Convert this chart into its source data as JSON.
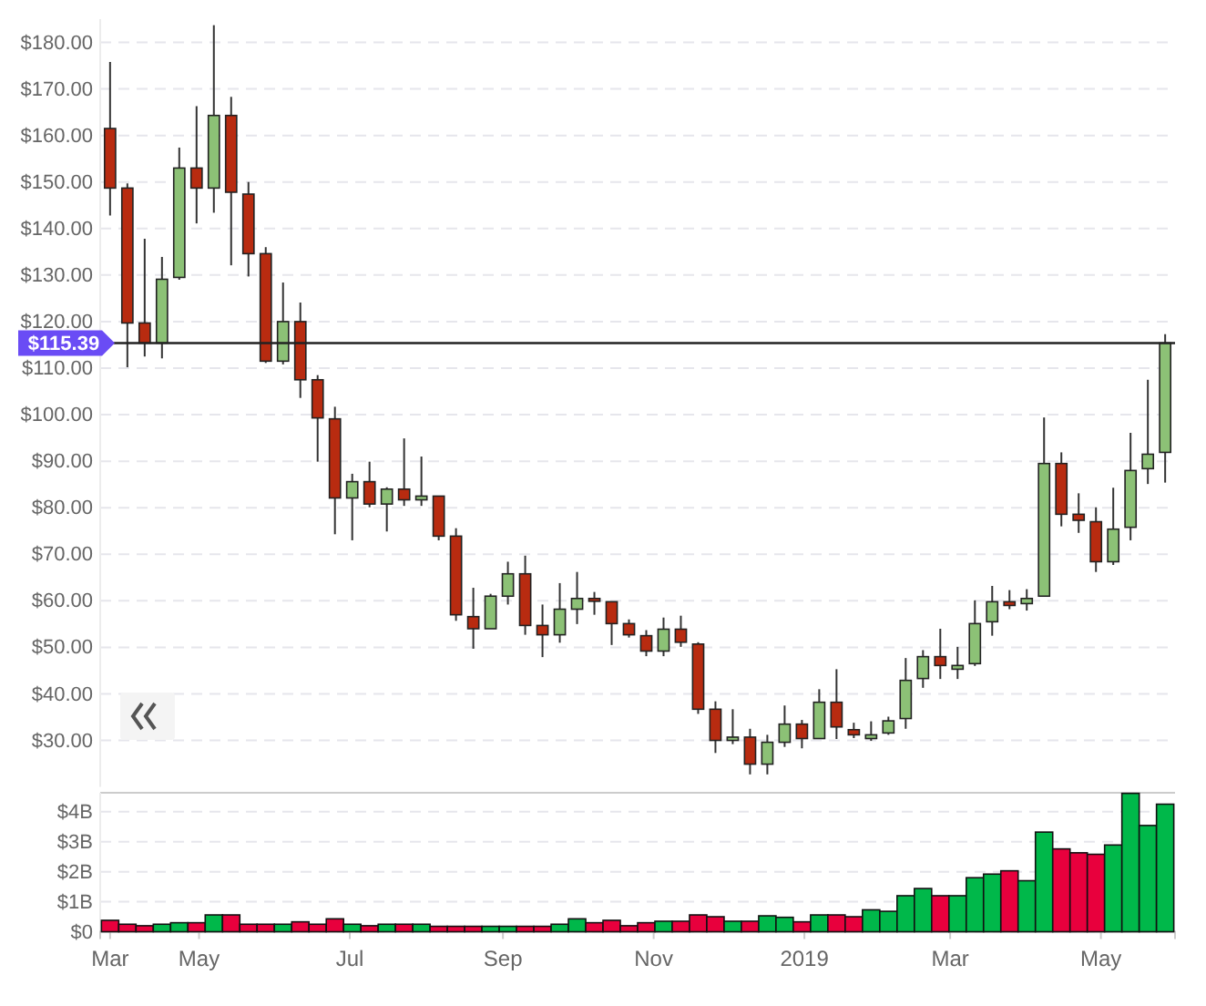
{
  "chart_data": [
    {
      "type": "candlestick",
      "x": [
        "2018-03-26",
        "2018-04-02",
        "2018-04-09",
        "2018-04-16",
        "2018-04-23",
        "2018-04-30",
        "2018-05-07",
        "2018-05-14",
        "2018-05-21",
        "2018-05-28",
        "2018-06-04",
        "2018-06-11",
        "2018-06-18",
        "2018-06-25",
        "2018-07-02",
        "2018-07-09",
        "2018-07-16",
        "2018-07-23",
        "2018-07-30",
        "2018-08-06",
        "2018-08-13",
        "2018-08-20",
        "2018-08-27",
        "2018-09-03",
        "2018-09-10",
        "2018-09-17",
        "2018-09-24",
        "2018-10-01",
        "2018-10-08",
        "2018-10-15",
        "2018-10-22",
        "2018-10-29",
        "2018-11-05",
        "2018-11-12",
        "2018-11-19",
        "2018-11-26",
        "2018-12-03",
        "2018-12-10",
        "2018-12-17",
        "2018-12-24",
        "2018-12-31",
        "2019-01-07",
        "2019-01-14",
        "2019-01-21",
        "2019-01-28",
        "2019-02-04",
        "2019-02-11",
        "2019-02-18",
        "2019-02-25",
        "2019-03-04",
        "2019-03-11",
        "2019-03-18",
        "2019-03-25",
        "2019-04-01",
        "2019-04-08",
        "2019-04-15",
        "2019-04-22",
        "2019-04-29",
        "2019-05-06",
        "2019-05-13",
        "2019-05-20",
        "2019-05-27"
      ],
      "ohlc": [
        [
          161.5,
          175.8,
          142.8,
          148.7
        ],
        [
          148.7,
          149.7,
          110.2,
          119.7
        ],
        [
          119.7,
          137.8,
          112.5,
          115.4
        ],
        [
          115.4,
          133.9,
          112.1,
          129.1
        ],
        [
          129.5,
          157.4,
          129.0,
          153.0
        ],
        [
          153.0,
          166.3,
          141.1,
          148.7
        ],
        [
          148.7,
          183.7,
          143.4,
          164.3
        ],
        [
          164.3,
          168.3,
          132.1,
          147.8
        ],
        [
          147.4,
          150.0,
          129.7,
          134.6
        ],
        [
          134.6,
          136.0,
          111.1,
          111.5
        ],
        [
          111.5,
          128.4,
          110.8,
          120.0
        ],
        [
          120.0,
          124.1,
          103.6,
          107.5
        ],
        [
          107.5,
          108.5,
          89.9,
          99.3
        ],
        [
          99.1,
          101.7,
          74.3,
          82.1
        ],
        [
          82.1,
          87.3,
          73.0,
          85.6
        ],
        [
          85.6,
          89.9,
          80.1,
          80.8
        ],
        [
          80.8,
          84.4,
          74.9,
          84.0
        ],
        [
          84.0,
          94.9,
          80.4,
          81.7
        ],
        [
          81.7,
          91.0,
          80.4,
          82.5
        ],
        [
          82.5,
          82.5,
          73.0,
          73.9
        ],
        [
          73.9,
          75.6,
          55.7,
          57.0
        ],
        [
          56.6,
          62.8,
          49.7,
          54.0
        ],
        [
          54.0,
          61.5,
          54.0,
          61.0
        ],
        [
          61.0,
          68.4,
          59.2,
          65.8
        ],
        [
          65.8,
          69.7,
          52.7,
          54.7
        ],
        [
          54.7,
          59.2,
          47.9,
          52.7
        ],
        [
          52.7,
          63.8,
          51.0,
          58.2
        ],
        [
          58.2,
          66.2,
          55.0,
          60.5
        ],
        [
          60.5,
          61.9,
          57.0,
          59.9
        ],
        [
          59.8,
          59.8,
          50.5,
          55.1
        ],
        [
          55.1,
          56.0,
          52.1,
          52.7
        ],
        [
          52.5,
          53.7,
          48.1,
          49.2
        ],
        [
          49.2,
          56.4,
          48.1,
          53.9
        ],
        [
          53.9,
          56.8,
          50.1,
          51.1
        ],
        [
          50.7,
          51.1,
          35.7,
          36.7
        ],
        [
          36.7,
          38.4,
          27.3,
          30.0
        ],
        [
          30.0,
          36.7,
          29.2,
          30.7
        ],
        [
          30.7,
          32.5,
          22.7,
          24.9
        ],
        [
          24.9,
          31.2,
          22.7,
          29.6
        ],
        [
          29.6,
          37.5,
          28.6,
          33.5
        ],
        [
          33.5,
          34.4,
          28.3,
          30.4
        ],
        [
          30.4,
          41.0,
          30.4,
          38.2
        ],
        [
          38.2,
          45.3,
          30.3,
          32.9
        ],
        [
          32.3,
          33.8,
          30.5,
          31.2
        ],
        [
          30.4,
          34.1,
          29.9,
          31.2
        ],
        [
          31.6,
          35.1,
          31.2,
          34.2
        ],
        [
          34.7,
          47.7,
          32.5,
          42.9
        ],
        [
          43.3,
          49.4,
          41.3,
          48.0
        ],
        [
          48.0,
          54.0,
          43.2,
          46.1
        ],
        [
          45.3,
          50.1,
          43.2,
          46.1
        ],
        [
          46.5,
          60.1,
          46.0,
          55.1
        ],
        [
          55.5,
          63.2,
          52.5,
          59.8
        ],
        [
          59.8,
          62.3,
          58.2,
          59.0
        ],
        [
          59.4,
          62.5,
          57.9,
          60.5
        ],
        [
          61.0,
          99.4,
          61.0,
          89.5
        ],
        [
          89.5,
          91.9,
          76.0,
          78.6
        ],
        [
          78.6,
          83.1,
          74.6,
          77.3
        ],
        [
          77.0,
          80.1,
          66.2,
          68.4
        ],
        [
          68.4,
          84.3,
          67.7,
          75.4
        ],
        [
          75.8,
          96.1,
          73.0,
          88.0
        ],
        [
          88.4,
          107.5,
          85.1,
          91.5
        ],
        [
          91.9,
          117.3,
          85.4,
          115.39
        ]
      ],
      "colors": [
        "#b82b10",
        "#b82b10",
        "#b82b10",
        "#8cc176",
        "#8cc176",
        "#b82b10",
        "#8cc176",
        "#b82b10",
        "#b82b10",
        "#b82b10",
        "#8cc176",
        "#b82b10",
        "#b82b10",
        "#b82b10",
        "#8cc176",
        "#b82b10",
        "#8cc176",
        "#b82b10",
        "#8cc176",
        "#b82b10",
        "#b82b10",
        "#b82b10",
        "#8cc176",
        "#8cc176",
        "#b82b10",
        "#b82b10",
        "#8cc176",
        "#8cc176",
        "#b82b10",
        "#b82b10",
        "#b82b10",
        "#b82b10",
        "#8cc176",
        "#b82b10",
        "#b82b10",
        "#b82b10",
        "#8cc176",
        "#b82b10",
        "#8cc176",
        "#8cc176",
        "#b82b10",
        "#8cc176",
        "#b82b10",
        "#b82b10",
        "#8cc176",
        "#8cc176",
        "#8cc176",
        "#8cc176",
        "#b82b10",
        "#8cc176",
        "#8cc176",
        "#8cc176",
        "#b82b10",
        "#8cc176",
        "#8cc176",
        "#b82b10",
        "#b82b10",
        "#b82b10",
        "#8cc176",
        "#8cc176",
        "#8cc176",
        "#8cc176"
      ],
      "xlim": [
        "2018-03-22",
        "2019-05-31"
      ],
      "ylim": [
        20,
        185
      ],
      "yticks": [
        {
          "value": 30,
          "label": "$30.00"
        },
        {
          "value": 40,
          "label": "$40.00"
        },
        {
          "value": 50,
          "label": "$50.00"
        },
        {
          "value": 60,
          "label": "$60.00"
        },
        {
          "value": 70,
          "label": "$70.00"
        },
        {
          "value": 80,
          "label": "$80.00"
        },
        {
          "value": 90,
          "label": "$90.00"
        },
        {
          "value": 100,
          "label": "$100.00"
        },
        {
          "value": 110,
          "label": "$110.00"
        },
        {
          "value": 120,
          "label": "$120.00"
        },
        {
          "value": 130,
          "label": "$130.00"
        },
        {
          "value": 140,
          "label": "$140.00"
        },
        {
          "value": 150,
          "label": "$150.00"
        },
        {
          "value": 160,
          "label": "$160.00"
        },
        {
          "value": 170,
          "label": "$170.00"
        },
        {
          "value": 180,
          "label": "$180.00"
        }
      ],
      "grid": "y",
      "tick_labels": "y",
      "ref_lines": [
        {
          "axis": "y",
          "value": 115.39,
          "label": "$115.39",
          "color": "#222222"
        }
      ]
    },
    {
      "type": "bar",
      "x": [
        "2018-03-26",
        "2018-04-02",
        "2018-04-09",
        "2018-04-16",
        "2018-04-23",
        "2018-04-30",
        "2018-05-07",
        "2018-05-14",
        "2018-05-21",
        "2018-05-28",
        "2018-06-04",
        "2018-06-11",
        "2018-06-18",
        "2018-06-25",
        "2018-07-02",
        "2018-07-09",
        "2018-07-16",
        "2018-07-23",
        "2018-07-30",
        "2018-08-06",
        "2018-08-13",
        "2018-08-20",
        "2018-08-27",
        "2018-09-03",
        "2018-09-10",
        "2018-09-17",
        "2018-09-24",
        "2018-10-01",
        "2018-10-08",
        "2018-10-15",
        "2018-10-22",
        "2018-10-29",
        "2018-11-05",
        "2018-11-12",
        "2018-11-19",
        "2018-11-26",
        "2018-12-03",
        "2018-12-10",
        "2018-12-17",
        "2018-12-24",
        "2018-12-31",
        "2019-01-07",
        "2019-01-14",
        "2019-01-21",
        "2019-01-28",
        "2019-02-04",
        "2019-02-11",
        "2019-02-18",
        "2019-02-25",
        "2019-03-04",
        "2019-03-11",
        "2019-03-18",
        "2019-03-25",
        "2019-04-01",
        "2019-04-08",
        "2019-04-15",
        "2019-04-22",
        "2019-04-29",
        "2019-05-06",
        "2019-05-13",
        "2019-05-20",
        "2019-05-27"
      ],
      "values": [
        0.38,
        0.25,
        0.2,
        0.25,
        0.3,
        0.3,
        0.56,
        0.56,
        0.25,
        0.25,
        0.25,
        0.33,
        0.25,
        0.43,
        0.25,
        0.2,
        0.25,
        0.25,
        0.25,
        0.18,
        0.18,
        0.18,
        0.18,
        0.18,
        0.18,
        0.18,
        0.25,
        0.43,
        0.3,
        0.38,
        0.2,
        0.3,
        0.35,
        0.35,
        0.56,
        0.5,
        0.35,
        0.35,
        0.53,
        0.48,
        0.33,
        0.56,
        0.56,
        0.5,
        0.73,
        0.68,
        1.2,
        1.44,
        1.2,
        1.2,
        1.8,
        1.92,
        2.03,
        1.7,
        3.32,
        2.76,
        2.63,
        2.58,
        2.89,
        4.61,
        3.54,
        4.25
      ],
      "colors": [
        "#e8003d",
        "#e8003d",
        "#e8003d",
        "#00b84a",
        "#00b84a",
        "#e8003d",
        "#00b84a",
        "#e8003d",
        "#e8003d",
        "#e8003d",
        "#00b84a",
        "#e8003d",
        "#e8003d",
        "#e8003d",
        "#00b84a",
        "#e8003d",
        "#00b84a",
        "#e8003d",
        "#00b84a",
        "#e8003d",
        "#e8003d",
        "#e8003d",
        "#00b84a",
        "#00b84a",
        "#e8003d",
        "#e8003d",
        "#00b84a",
        "#00b84a",
        "#e8003d",
        "#e8003d",
        "#e8003d",
        "#e8003d",
        "#00b84a",
        "#e8003d",
        "#e8003d",
        "#e8003d",
        "#00b84a",
        "#e8003d",
        "#00b84a",
        "#00b84a",
        "#e8003d",
        "#00b84a",
        "#e8003d",
        "#e8003d",
        "#00b84a",
        "#00b84a",
        "#00b84a",
        "#00b84a",
        "#e8003d",
        "#00b84a",
        "#00b84a",
        "#00b84a",
        "#e8003d",
        "#00b84a",
        "#00b84a",
        "#e8003d",
        "#e8003d",
        "#e8003d",
        "#00b84a",
        "#00b84a",
        "#00b84a",
        "#00b84a"
      ],
      "xlim": [
        "2018-03-22",
        "2019-05-31"
      ],
      "xticks": [
        {
          "value": "2018-03-26",
          "label": "Mar"
        },
        {
          "value": "2018-05-01",
          "label": "May"
        },
        {
          "value": "2018-07-01",
          "label": "Jul"
        },
        {
          "value": "2018-09-01",
          "label": "Sep"
        },
        {
          "value": "2018-11-01",
          "label": "Nov"
        },
        {
          "value": "2019-01-01",
          "label": "2019"
        },
        {
          "value": "2019-03-01",
          "label": "Mar"
        },
        {
          "value": "2019-05-01",
          "label": "May"
        }
      ],
      "ylim": [
        0,
        4.63
      ],
      "yticks": [
        {
          "value": 0,
          "label": "$0"
        },
        {
          "value": 1,
          "label": "$1B"
        },
        {
          "value": 2,
          "label": "$2B"
        },
        {
          "value": 3,
          "label": "$3B"
        },
        {
          "value": 4,
          "label": "$4B"
        }
      ],
      "grid": "y"
    }
  ]
}
